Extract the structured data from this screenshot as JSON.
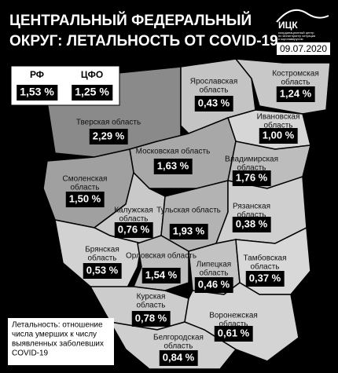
{
  "header": {
    "title": [
      "ЦЕНТРАЛЬНЫЙ ФЕДЕРАЛЬНЫЙ",
      "ОКРУГ: ЛЕТАЛЬНОСТЬ ОТ COVID-19"
    ],
    "logo": "ИЦК",
    "logo_caption": [
      "координационный центр",
      "по мониторингу ситуации",
      "с коронавирусом"
    ],
    "date": "09.07.2020"
  },
  "summary": [
    {
      "label": "РФ",
      "value": "1,53 %"
    },
    {
      "label": "ЦФО",
      "value": "1,25 %"
    }
  ],
  "regions": [
    {
      "name": [
        "Ярославская",
        "область"
      ],
      "value": "0,43 %"
    },
    {
      "name": [
        "Костромская",
        "область"
      ],
      "value": "1,24 %"
    },
    {
      "name": [
        "Тверская область"
      ],
      "value": "2,29 %"
    },
    {
      "name": [
        "Ивановская",
        "область"
      ],
      "value": "1,00 %"
    },
    {
      "name": [
        "Московская область"
      ],
      "value": "1,63 %"
    },
    {
      "name": [
        "Владимирская",
        "область"
      ],
      "value": "1,76 %"
    },
    {
      "name": [
        "Смоленская",
        "область"
      ],
      "value": "1,50 %"
    },
    {
      "name": [
        "Калужская",
        "область"
      ],
      "value": "0,76 %"
    },
    {
      "name": [
        "Тульская область"
      ],
      "value": "1,93 %"
    },
    {
      "name": [
        "Рязанская",
        "область"
      ],
      "value": "0,38 %"
    },
    {
      "name": [
        "Брянская",
        "область"
      ],
      "value": "0,53 %"
    },
    {
      "name": [
        "Орловская область"
      ],
      "value": "1,54 %"
    },
    {
      "name": [
        "Липецкая",
        "область"
      ],
      "value": "0,46 %"
    },
    {
      "name": [
        "Тамбовская",
        "область"
      ],
      "value": "0,37 %"
    },
    {
      "name": [
        "Курская",
        "область"
      ],
      "value": "0,78 %"
    },
    {
      "name": [
        "Воронежская",
        "область"
      ],
      "value": "0,61 %"
    },
    {
      "name": [
        "Белгородская",
        "область"
      ],
      "value": "0,84 %"
    }
  ],
  "note": [
    "Летальность: отношение",
    "числа умерших к числу",
    "выявленных заболевших",
    "COVID-19"
  ]
}
